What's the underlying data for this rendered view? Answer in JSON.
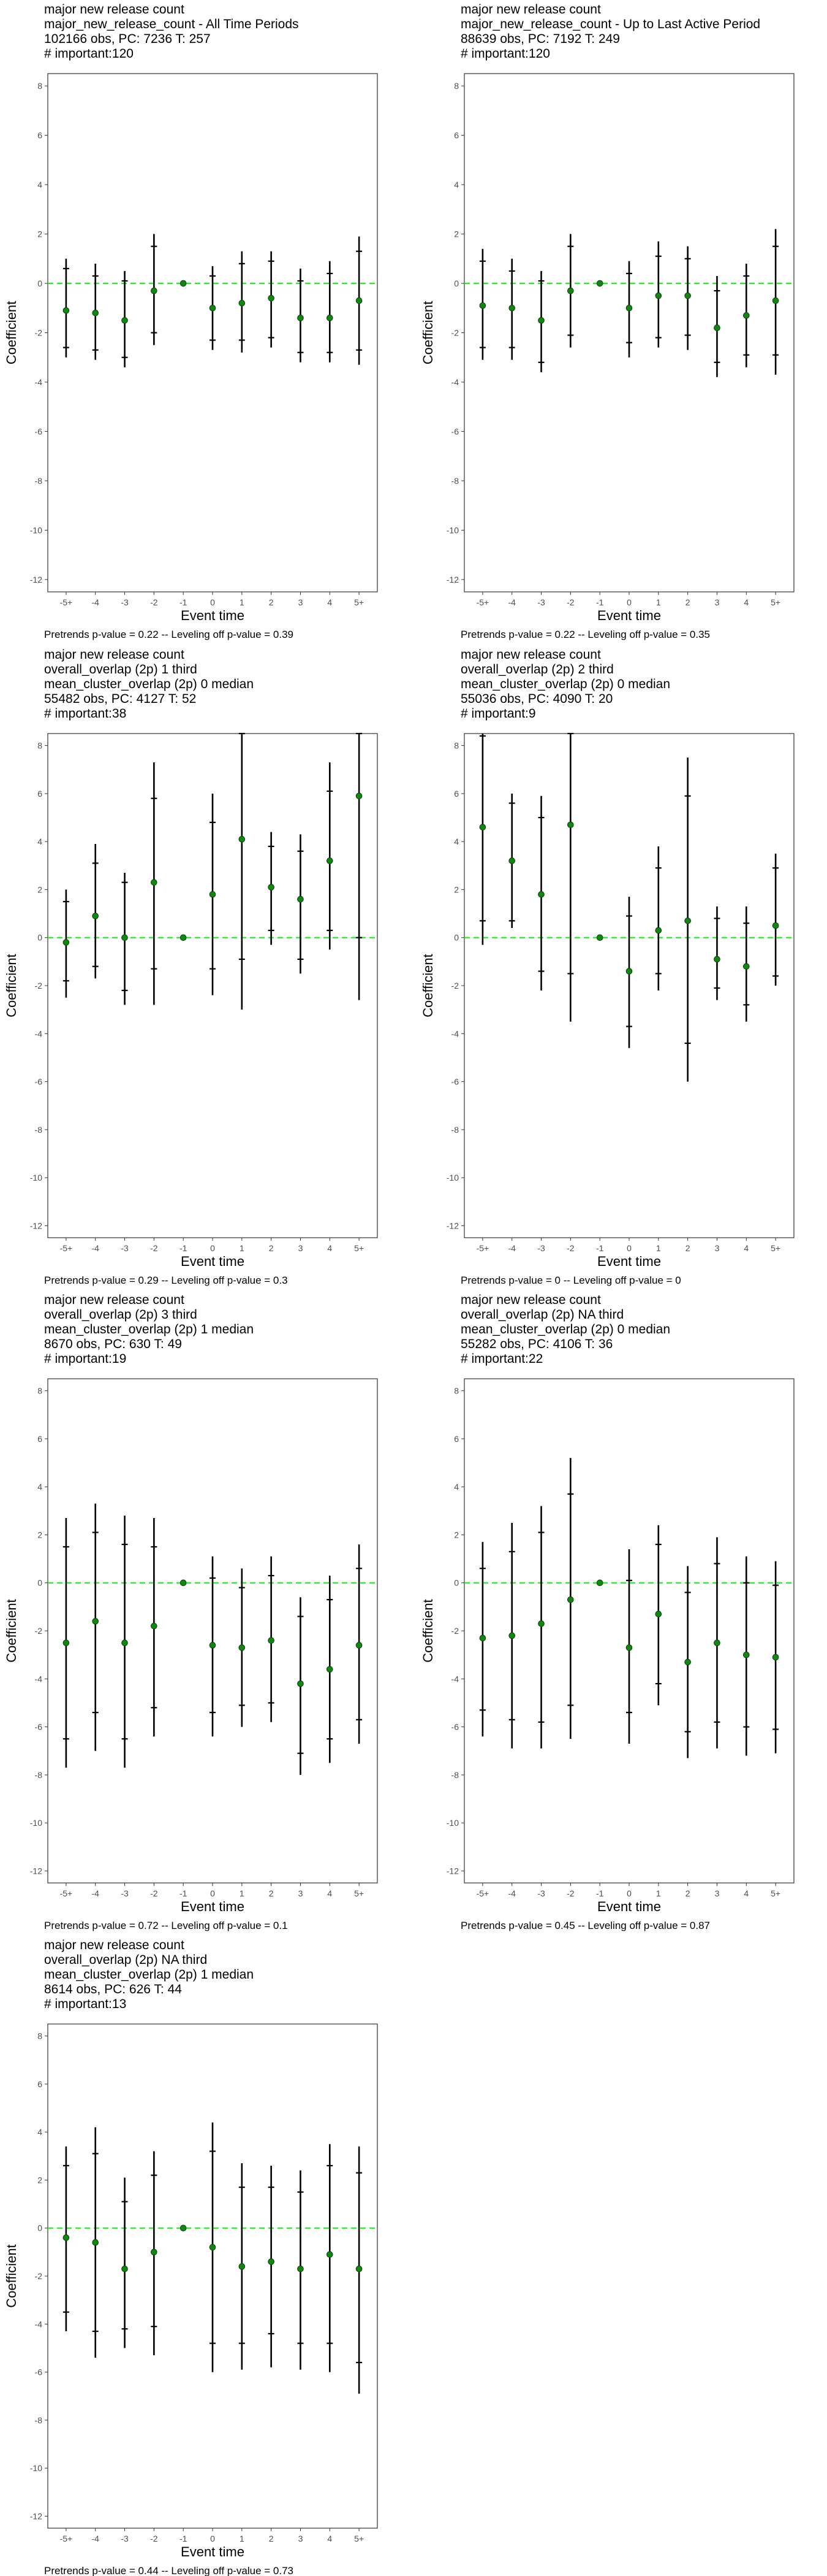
{
  "chart_data": [
    {
      "type": "scatter",
      "title_lines": [
        "major new release count",
        "major_new_release_count - All Time Periods",
        "102166 obs, PC: 7236 T: 257",
        "# important:120"
      ],
      "xlabel": "Event time",
      "ylabel": "Coefficient",
      "categories": [
        "-5+",
        "-4",
        "-3",
        "-2",
        "-1",
        "0",
        "1",
        "2",
        "3",
        "4",
        "5+"
      ],
      "ylim": [
        -12.5,
        8.5
      ],
      "yticks": [
        8,
        6,
        4,
        2,
        0,
        -2,
        -4,
        -6,
        -8,
        -10,
        -12
      ],
      "series": [
        {
          "point": [
            -1.1,
            -1.2,
            -1.5,
            -0.3,
            0.0,
            -1.0,
            -0.8,
            -0.6,
            -1.4,
            -1.4,
            -0.7
          ],
          "ci_outer": [
            [
              -3.0,
              1.0
            ],
            [
              -3.1,
              0.8
            ],
            [
              -3.4,
              0.5
            ],
            [
              -2.5,
              2.0
            ],
            null,
            [
              -2.7,
              0.7
            ],
            [
              -2.8,
              1.3
            ],
            [
              -2.6,
              1.3
            ],
            [
              -3.2,
              0.6
            ],
            [
              -3.2,
              0.9
            ],
            [
              -3.3,
              1.9
            ]
          ],
          "ci_inner": [
            [
              -2.6,
              0.6
            ],
            [
              -2.7,
              0.3
            ],
            [
              -3.0,
              0.1
            ],
            [
              -2.0,
              1.5
            ],
            null,
            [
              -2.3,
              0.3
            ],
            [
              -2.3,
              0.8
            ],
            [
              -2.2,
              0.9
            ],
            [
              -2.8,
              0.1
            ],
            [
              -2.8,
              0.4
            ],
            [
              -2.7,
              1.3
            ]
          ]
        }
      ],
      "reference_line": 0,
      "footnote": "Pretrends p-value = 0.22 -- Leveling off p-value = 0.39"
    },
    {
      "type": "scatter",
      "title_lines": [
        "major new release count",
        "major_new_release_count - Up to Last Active Period",
        "88639 obs, PC: 7192 T: 249",
        "# important:120"
      ],
      "xlabel": "Event time",
      "ylabel": "Coefficient",
      "categories": [
        "-5+",
        "-4",
        "-3",
        "-2",
        "-1",
        "0",
        "1",
        "2",
        "3",
        "4",
        "5+"
      ],
      "ylim": [
        -12.5,
        8.5
      ],
      "yticks": [
        8,
        6,
        4,
        2,
        0,
        -2,
        -4,
        -6,
        -8,
        -10,
        -12
      ],
      "series": [
        {
          "point": [
            -0.9,
            -1.0,
            -1.5,
            -0.3,
            0.0,
            -1.0,
            -0.5,
            -0.5,
            -1.8,
            -1.3,
            -0.7
          ],
          "ci_outer": [
            [
              -3.1,
              1.4
            ],
            [
              -3.1,
              1.0
            ],
            [
              -3.6,
              0.5
            ],
            [
              -2.6,
              2.0
            ],
            null,
            [
              -3.0,
              0.9
            ],
            [
              -2.6,
              1.7
            ],
            [
              -2.7,
              1.5
            ],
            [
              -3.8,
              0.3
            ],
            [
              -3.4,
              0.8
            ],
            [
              -3.7,
              2.2
            ]
          ],
          "ci_inner": [
            [
              -2.6,
              0.9
            ],
            [
              -2.6,
              0.5
            ],
            [
              -3.2,
              0.1
            ],
            [
              -2.1,
              1.5
            ],
            null,
            [
              -2.4,
              0.4
            ],
            [
              -2.2,
              1.1
            ],
            [
              -2.1,
              1.0
            ],
            [
              -3.2,
              -0.3
            ],
            [
              -2.9,
              0.3
            ],
            [
              -2.9,
              1.5
            ]
          ]
        }
      ],
      "reference_line": 0,
      "footnote": "Pretrends p-value = 0.22 -- Leveling off p-value = 0.35"
    },
    {
      "type": "scatter",
      "title_lines": [
        "major new release count",
        "overall_overlap (2p) 1 third",
        "mean_cluster_overlap (2p) 0 median",
        "55482 obs, PC: 4127 T: 52",
        "# important:38"
      ],
      "xlabel": "Event time",
      "ylabel": "Coefficient",
      "categories": [
        "-5+",
        "-4",
        "-3",
        "-2",
        "-1",
        "0",
        "1",
        "2",
        "3",
        "4",
        "5+"
      ],
      "ylim": [
        -12.5,
        8.5
      ],
      "yticks": [
        8,
        6,
        4,
        2,
        0,
        -2,
        -4,
        -6,
        -8,
        -10,
        -12
      ],
      "series": [
        {
          "point": [
            -0.2,
            0.9,
            0.0,
            2.3,
            0.0,
            1.8,
            4.1,
            2.1,
            1.6,
            3.2,
            5.9
          ],
          "ci_outer": [
            [
              -2.5,
              2.0
            ],
            [
              -1.7,
              3.9
            ],
            [
              -2.8,
              2.7
            ],
            [
              -2.8,
              7.3
            ],
            null,
            [
              -2.4,
              6.0
            ],
            [
              -3.0,
              9.0
            ],
            [
              -0.3,
              4.4
            ],
            [
              -1.5,
              4.3
            ],
            [
              -0.5,
              7.3
            ],
            [
              -2.6,
              9.0
            ]
          ],
          "ci_inner": [
            [
              -1.8,
              1.5
            ],
            [
              -1.2,
              3.1
            ],
            [
              -2.2,
              2.3
            ],
            [
              -1.3,
              5.8
            ],
            null,
            [
              -1.3,
              4.8
            ],
            [
              -0.9,
              8.9
            ],
            [
              0.3,
              3.8
            ],
            [
              -0.9,
              3.6
            ],
            [
              0.3,
              6.1
            ],
            [
              0.0,
              8.9
            ]
          ]
        }
      ],
      "reference_line": 0,
      "footnote": "Pretrends p-value = 0.29 -- Leveling off p-value = 0.3"
    },
    {
      "type": "scatter",
      "title_lines": [
        "major new release count",
        "overall_overlap (2p) 2 third",
        "mean_cluster_overlap (2p) 0 median",
        "55036 obs, PC: 4090 T: 20",
        "# important:9"
      ],
      "xlabel": "Event time",
      "ylabel": "Coefficient",
      "categories": [
        "-5+",
        "-4",
        "-3",
        "-2",
        "-1",
        "0",
        "1",
        "2",
        "3",
        "4",
        "5+"
      ],
      "ylim": [
        -12.5,
        8.5
      ],
      "yticks": [
        8,
        6,
        4,
        2,
        0,
        -2,
        -4,
        -6,
        -8,
        -10,
        -12
      ],
      "series": [
        {
          "point": [
            4.6,
            3.2,
            1.8,
            4.7,
            0.0,
            -1.4,
            0.3,
            0.7,
            -0.9,
            -1.2,
            0.5
          ],
          "ci_outer": [
            [
              -0.3,
              9.0
            ],
            [
              0.4,
              6.0
            ],
            [
              -2.2,
              5.9
            ],
            [
              -3.5,
              9.0
            ],
            null,
            [
              -4.6,
              1.7
            ],
            [
              -2.2,
              3.8
            ],
            [
              -6.0,
              7.5
            ],
            [
              -2.6,
              1.3
            ],
            [
              -3.5,
              1.3
            ],
            [
              -2.0,
              3.5
            ]
          ],
          "ci_inner": [
            [
              0.7,
              8.4
            ],
            [
              0.7,
              5.6
            ],
            [
              -1.4,
              5.0
            ],
            [
              -1.5,
              8.9
            ],
            null,
            [
              -3.7,
              0.9
            ],
            [
              -1.5,
              2.9
            ],
            [
              -4.4,
              5.9
            ],
            [
              -2.1,
              0.8
            ],
            [
              -2.8,
              0.6
            ],
            [
              -1.6,
              2.9
            ]
          ]
        }
      ],
      "reference_line": 0,
      "footnote": "Pretrends p-value = 0 -- Leveling off p-value = 0"
    },
    {
      "type": "scatter",
      "title_lines": [
        "major new release count",
        "overall_overlap (2p) 3 third",
        "mean_cluster_overlap (2p) 1 median",
        "8670 obs, PC: 630 T: 49",
        "# important:19"
      ],
      "xlabel": "Event time",
      "ylabel": "Coefficient",
      "categories": [
        "-5+",
        "-4",
        "-3",
        "-2",
        "-1",
        "0",
        "1",
        "2",
        "3",
        "4",
        "5+"
      ],
      "ylim": [
        -12.5,
        8.5
      ],
      "yticks": [
        8,
        6,
        4,
        2,
        0,
        -2,
        -4,
        -6,
        -8,
        -10,
        -12
      ],
      "series": [
        {
          "point": [
            -2.5,
            -1.6,
            -2.5,
            -1.8,
            0.0,
            -2.6,
            -2.7,
            -2.4,
            -4.2,
            -3.6,
            -2.6
          ],
          "ci_outer": [
            [
              -7.7,
              2.7
            ],
            [
              -7.0,
              3.3
            ],
            [
              -7.7,
              2.8
            ],
            [
              -6.4,
              2.7
            ],
            null,
            [
              -6.4,
              1.1
            ],
            [
              -6.0,
              0.6
            ],
            [
              -5.8,
              1.1
            ],
            [
              -8.0,
              -0.6
            ],
            [
              -7.5,
              0.3
            ],
            [
              -6.7,
              1.6
            ]
          ],
          "ci_inner": [
            [
              -6.5,
              1.5
            ],
            [
              -5.4,
              2.1
            ],
            [
              -6.5,
              1.6
            ],
            [
              -5.2,
              1.5
            ],
            null,
            [
              -5.4,
              0.2
            ],
            [
              -5.1,
              -0.2
            ],
            [
              -5.0,
              0.3
            ],
            [
              -7.1,
              -1.4
            ],
            [
              -6.5,
              -0.7
            ],
            [
              -5.7,
              0.6
            ]
          ]
        }
      ],
      "reference_line": 0,
      "footnote": "Pretrends p-value = 0.72 -- Leveling off p-value = 0.1"
    },
    {
      "type": "scatter",
      "title_lines": [
        "major new release count",
        "overall_overlap (2p) NA third",
        "mean_cluster_overlap (2p) 0 median",
        "55282 obs, PC: 4106 T: 36",
        "# important:22"
      ],
      "xlabel": "Event time",
      "ylabel": "Coefficient",
      "categories": [
        "-5+",
        "-4",
        "-3",
        "-2",
        "-1",
        "0",
        "1",
        "2",
        "3",
        "4",
        "5+"
      ],
      "ylim": [
        -12.5,
        8.5
      ],
      "yticks": [
        8,
        6,
        4,
        2,
        0,
        -2,
        -4,
        -6,
        -8,
        -10,
        -12
      ],
      "series": [
        {
          "point": [
            -2.3,
            -2.2,
            -1.7,
            -0.7,
            0.0,
            -2.7,
            -1.3,
            -3.3,
            -2.5,
            -3.0,
            -3.1
          ],
          "ci_outer": [
            [
              -6.4,
              1.7
            ],
            [
              -6.9,
              2.5
            ],
            [
              -6.9,
              3.2
            ],
            [
              -6.5,
              5.2
            ],
            null,
            [
              -6.7,
              1.4
            ],
            [
              -5.1,
              2.4
            ],
            [
              -7.3,
              0.7
            ],
            [
              -6.9,
              1.9
            ],
            [
              -7.2,
              1.1
            ],
            [
              -7.1,
              0.9
            ]
          ],
          "ci_inner": [
            [
              -5.3,
              0.6
            ],
            [
              -5.7,
              1.3
            ],
            [
              -5.8,
              2.1
            ],
            [
              -5.1,
              3.7
            ],
            null,
            [
              -5.4,
              0.1
            ],
            [
              -4.2,
              1.6
            ],
            [
              -6.2,
              -0.4
            ],
            [
              -5.8,
              0.8
            ],
            [
              -6.0,
              0.0
            ],
            [
              -6.1,
              -0.1
            ]
          ]
        }
      ],
      "reference_line": 0,
      "footnote": "Pretrends p-value = 0.45 -- Leveling off p-value = 0.87"
    },
    {
      "type": "scatter",
      "title_lines": [
        "major new release count",
        "overall_overlap (2p) NA third",
        "mean_cluster_overlap (2p) 1 median",
        "8614 obs, PC: 626 T: 44",
        "# important:13"
      ],
      "xlabel": "Event time",
      "ylabel": "Coefficient",
      "categories": [
        "-5+",
        "-4",
        "-3",
        "-2",
        "-1",
        "0",
        "1",
        "2",
        "3",
        "4",
        "5+"
      ],
      "ylim": [
        -12.5,
        8.5
      ],
      "yticks": [
        8,
        6,
        4,
        2,
        0,
        -2,
        -4,
        -6,
        -8,
        -10,
        -12
      ],
      "series": [
        {
          "point": [
            -0.4,
            -0.6,
            -1.7,
            -1.0,
            0.0,
            -0.8,
            -1.6,
            -1.4,
            -1.7,
            -1.1,
            -1.7
          ],
          "ci_outer": [
            [
              -4.3,
              3.4
            ],
            [
              -5.4,
              4.2
            ],
            [
              -5.0,
              2.1
            ],
            [
              -5.3,
              3.2
            ],
            null,
            [
              -6.0,
              4.4
            ],
            [
              -5.9,
              2.7
            ],
            [
              -5.8,
              2.6
            ],
            [
              -5.9,
              2.4
            ],
            [
              -6.0,
              3.5
            ],
            [
              -6.9,
              3.4
            ]
          ],
          "ci_inner": [
            [
              -3.5,
              2.6
            ],
            [
              -4.3,
              3.1
            ],
            [
              -4.2,
              1.1
            ],
            [
              -4.1,
              2.2
            ],
            null,
            [
              -4.8,
              3.2
            ],
            [
              -4.8,
              1.7
            ],
            [
              -4.4,
              1.7
            ],
            [
              -4.8,
              1.5
            ],
            [
              -4.8,
              2.6
            ],
            [
              -5.6,
              2.3
            ]
          ]
        }
      ],
      "reference_line": 0,
      "footnote": "Pretrends p-value = 0.44 -- Leveling off p-value = 0.73"
    }
  ]
}
